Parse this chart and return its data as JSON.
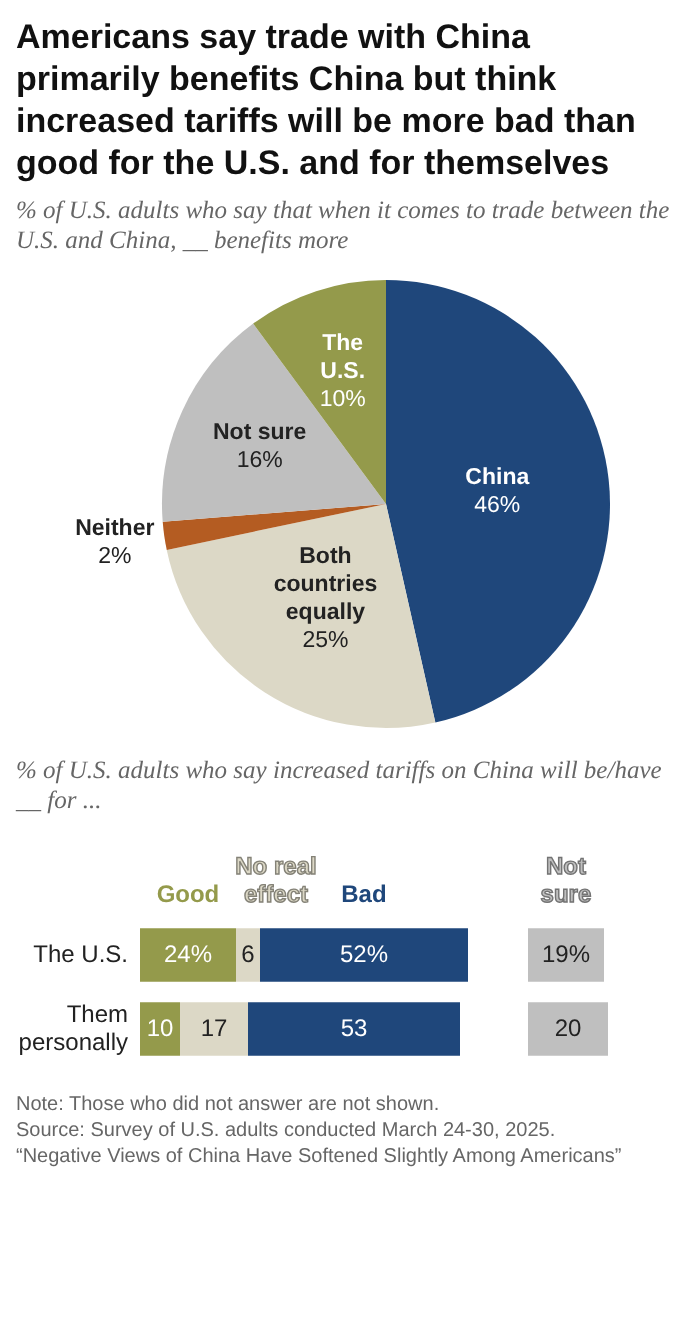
{
  "chart_data": [
    {
      "type": "pie",
      "title": "Americans say trade with China primarily benefits China but think increased tariffs will be more bad than good for the U.S. and for themselves",
      "subtitle": "% of U.S. adults who say that when it comes to trade between the U.S. and China, __ benefits more",
      "categories": [
        "China",
        "Both countries equally",
        "Neither",
        "Not sure",
        "The U.S."
      ],
      "values": [
        46,
        25,
        2,
        16,
        10
      ],
      "colors": [
        "#1f477b",
        "#dcd8c6",
        "#b45c22",
        "#bfbfbf",
        "#949a4b"
      ],
      "value_labels": [
        "46%",
        "25%",
        "2%",
        "16%",
        "10%"
      ]
    },
    {
      "type": "bar",
      "orientation": "horizontal",
      "stacked": true,
      "subtitle": "% of U.S. adults who say increased tariffs on China will be/have __ for ...",
      "categories": [
        "The U.S.",
        "Them personally"
      ],
      "legend": "top",
      "series": [
        {
          "name": "Good",
          "color": "#949a4b",
          "values": [
            24,
            10
          ],
          "value_labels": [
            "24%",
            "10"
          ]
        },
        {
          "name": "No real effect",
          "color": "#dcd8c6",
          "values": [
            6,
            17
          ],
          "value_labels": [
            "6",
            "17"
          ]
        },
        {
          "name": "Bad",
          "color": "#1f477b",
          "values": [
            52,
            53
          ],
          "value_labels": [
            "52%",
            "53"
          ]
        }
      ]
    },
    {
      "type": "bar",
      "orientation": "horizontal",
      "categories": [
        null,
        null
      ],
      "tick_labels": false,
      "legend": "top",
      "series": [
        {
          "name": "Not sure",
          "color": "#bfbfbf",
          "values": [
            19,
            20
          ],
          "value_labels": [
            "19%",
            "20"
          ]
        }
      ],
      "annotations": [
        "Note: Those who did not answer are not shown.",
        "Source: Survey of U.S. adults conducted March 24-30, 2025.",
        "“Negative Views of China Have Softened Slightly Among Americans”"
      ]
    }
  ]
}
